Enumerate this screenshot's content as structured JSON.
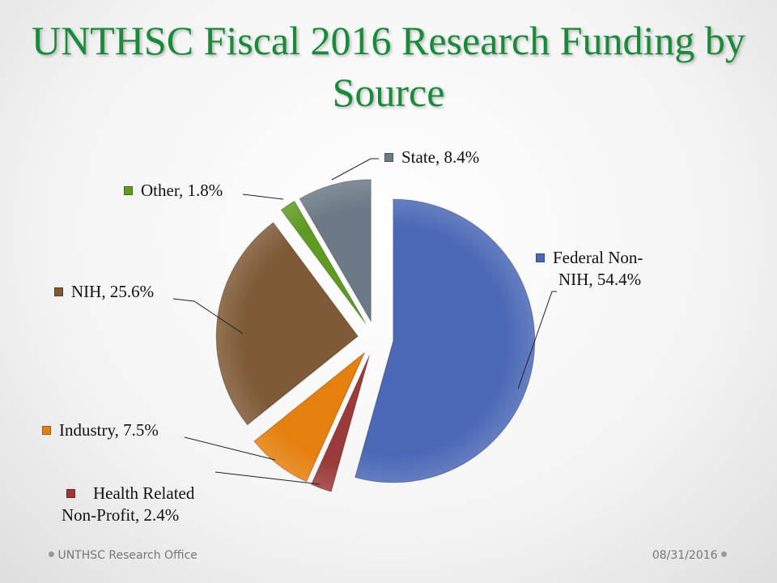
{
  "chart_data": {
    "type": "pie",
    "title": "UNTHSC Fiscal 2016 Research Funding by Source",
    "slices": [
      {
        "name": "Federal Non-NIH",
        "value": 54.4,
        "label": "Federal Non-NIH, 54.4%",
        "line1": "Federal Non-",
        "line2": "NIH, 54.4%",
        "color": "#4a68b6"
      },
      {
        "name": "Health Related Non-Profit",
        "value": 2.4,
        "label": "Health Related Non-Profit, 2.4%",
        "line1": "Health Related",
        "line2": "Non-Profit, 2.4%",
        "color": "#9b3a3a"
      },
      {
        "name": "Industry",
        "value": 7.5,
        "label": "Industry, 7.5%",
        "color": "#e5800e"
      },
      {
        "name": "NIH",
        "value": 25.6,
        "label": "NIH, 25.6%",
        "color": "#7e5a36"
      },
      {
        "name": "Other",
        "value": 1.8,
        "label": "Other, 1.8%",
        "color": "#5f9a22"
      },
      {
        "name": "State",
        "value": 8.4,
        "label": "State, 8.4%",
        "color": "#6b7a86"
      }
    ],
    "legend": "none (data labels)"
  },
  "footer": {
    "left": "UNTHSC Research Office",
    "right": "08/31/2016"
  }
}
